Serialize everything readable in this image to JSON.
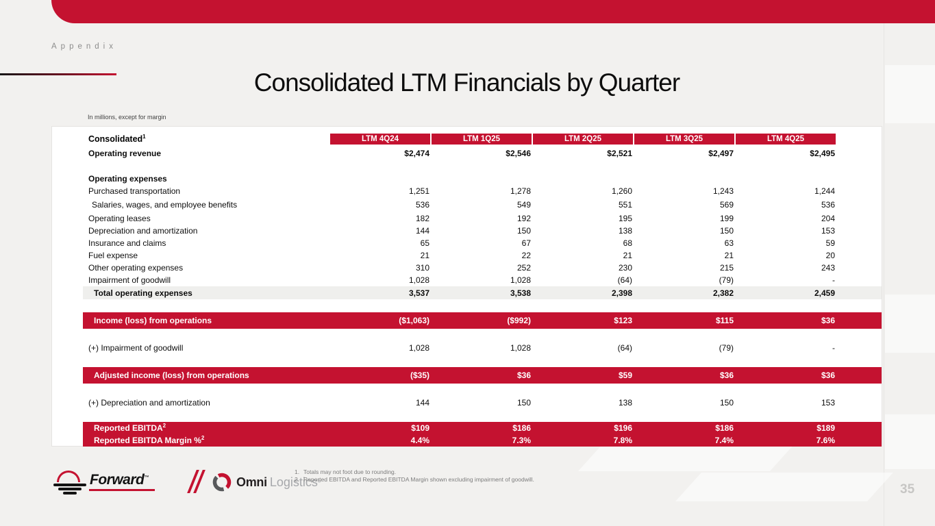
{
  "slide": {
    "eyebrow": "Appendix",
    "title": "Consolidated LTM Financials by Quarter",
    "units_note": "In millions, except for margin",
    "page_number": "35"
  },
  "colors": {
    "accent_red": "#c41230",
    "banner_text": "#ffffff",
    "total_row_bg": "#efefed",
    "page_bg": "#f2f1ef"
  },
  "table": {
    "label_header": "Consolidated",
    "label_header_sup": "1",
    "columns": [
      "LTM 4Q24",
      "LTM 1Q25",
      "LTM 2Q25",
      "LTM 3Q25",
      "LTM 4Q25"
    ],
    "rows": [
      {
        "label": "Operating revenue",
        "style": "bold",
        "values": [
          "$2,474",
          "$2,546",
          "$2,521",
          "$2,497",
          "$2,495"
        ]
      },
      {
        "style": "spacer"
      },
      {
        "label": "Operating expenses",
        "style": "section",
        "values": [
          "",
          "",
          "",
          "",
          ""
        ]
      },
      {
        "label": "Purchased transportation",
        "style": "normal",
        "values": [
          "1,251",
          "1,278",
          "1,260",
          "1,243",
          "1,244"
        ]
      },
      {
        "label": "Salaries, wages, and employee benefits",
        "style": "normal tall indent1",
        "values": [
          "536",
          "549",
          "551",
          "569",
          "536"
        ]
      },
      {
        "label": "Operating leases",
        "style": "normal",
        "values": [
          "182",
          "192",
          "195",
          "199",
          "204"
        ]
      },
      {
        "label": "Depreciation and amortization",
        "style": "normal",
        "values": [
          "144",
          "150",
          "138",
          "150",
          "153"
        ]
      },
      {
        "label": "Insurance and claims",
        "style": "normal",
        "values": [
          "65",
          "67",
          "68",
          "63",
          "59"
        ]
      },
      {
        "label": "Fuel expense",
        "style": "normal",
        "values": [
          "21",
          "22",
          "21",
          "21",
          "20"
        ]
      },
      {
        "label": "Other operating expenses",
        "style": "normal",
        "values": [
          "310",
          "252",
          "230",
          "215",
          "243"
        ]
      },
      {
        "label": "Impairment of goodwill",
        "style": "normal",
        "values": [
          "1,028",
          "1,028",
          "(64)",
          "(79)",
          "-"
        ]
      },
      {
        "label": "Total operating expenses",
        "style": "total",
        "values": [
          "3,537",
          "3,538",
          "2,398",
          "2,382",
          "2,459"
        ]
      },
      {
        "style": "spacer"
      },
      {
        "label": "Income (loss) from operations",
        "style": "banner",
        "values": [
          "($1,063)",
          "($992)",
          "$123",
          "$115",
          "$36"
        ]
      },
      {
        "style": "spacer"
      },
      {
        "label": "(+) Impairment of goodwill",
        "style": "normal",
        "values": [
          "1,028",
          "1,028",
          "(64)",
          "(79)",
          "-"
        ]
      },
      {
        "style": "spacer"
      },
      {
        "label": "Adjusted income (loss) from operations",
        "style": "banner",
        "values": [
          "($35)",
          "$36",
          "$59",
          "$36",
          "$36"
        ]
      },
      {
        "style": "spacer"
      },
      {
        "label": "(+) Depreciation and amortization",
        "style": "normal",
        "values": [
          "144",
          "150",
          "138",
          "150",
          "153"
        ]
      },
      {
        "style": "spacer"
      },
      {
        "label": "Reported EBITDA",
        "sup": "2",
        "style": "banner2",
        "values": [
          "$109",
          "$186",
          "$196",
          "$186",
          "$189"
        ]
      },
      {
        "label": "Reported EBITDA Margin %",
        "sup": "2",
        "style": "banner2",
        "values": [
          "4.4%",
          "7.3%",
          "7.8%",
          "7.4%",
          "7.6%"
        ]
      }
    ]
  },
  "footnotes": [
    {
      "num": "1.",
      "text": "Totals may not foot due to rounding."
    },
    {
      "num": "2.",
      "text": "Reported EBITDA and Reported EBITDA Margin shown excluding impairment of goodwill."
    }
  ],
  "logos": {
    "forward_text": "Forward",
    "forward_tm": "™",
    "omni_bold": "Omni",
    "omni_light": "Logistics"
  }
}
